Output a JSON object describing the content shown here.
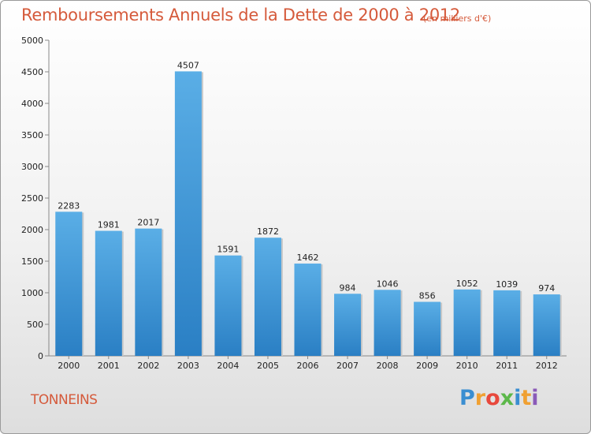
{
  "title": "Remboursements Annuels de la Dette de 2000 à 2012",
  "unit_note": "(en milliers d'€)",
  "city": "TONNEINS",
  "logo": {
    "letters": [
      "P",
      "r",
      "o",
      "x",
      "i",
      "t",
      "i"
    ],
    "colors": [
      "#3a8ed1",
      "#f0a032",
      "#e8483c",
      "#5cb84a",
      "#3a8ed1",
      "#f0a032",
      "#8a5ab8"
    ]
  },
  "colors": {
    "bar_top": "#5aaee6",
    "bar_bottom": "#2a7fc4",
    "text_accent": "#d55a3b"
  },
  "chart_data": {
    "type": "bar",
    "categories": [
      "2000",
      "2001",
      "2002",
      "2003",
      "2004",
      "2005",
      "2006",
      "2007",
      "2008",
      "2009",
      "2010",
      "2011",
      "2012"
    ],
    "values": [
      2283,
      1981,
      2017,
      4507,
      1591,
      1872,
      1462,
      984,
      1046,
      856,
      1052,
      1039,
      974
    ],
    "data_labels": [
      "2283",
      "1981",
      "2017",
      "4507",
      "1591",
      "1872",
      "1462",
      "984",
      "1046",
      "856",
      "1052",
      "1039",
      "974"
    ],
    "title": "Remboursements Annuels de la Dette de 2000 à 2012",
    "xlabel": "",
    "ylabel": "",
    "ylim": [
      0,
      5000
    ],
    "yticks": [
      0,
      500,
      1000,
      1500,
      2000,
      2500,
      3000,
      3500,
      4000,
      4500,
      5000
    ],
    "ytick_labels": [
      "0",
      "500",
      "1000",
      "1500",
      "2000",
      "2500",
      "3000",
      "3500",
      "4000",
      "4500",
      "5000"
    ],
    "grid": false,
    "legend": "none"
  }
}
